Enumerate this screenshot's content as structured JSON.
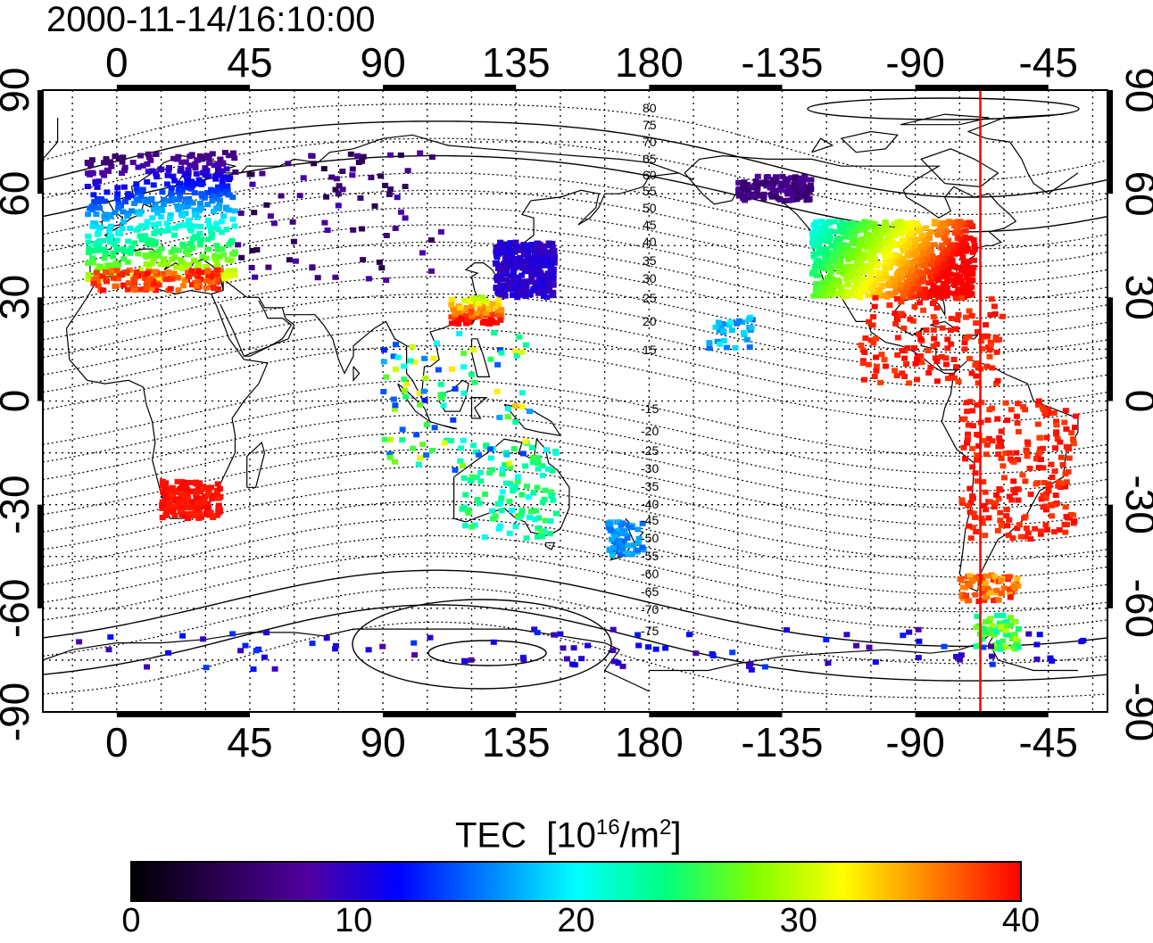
{
  "title": "2000-11-14/16:10:00",
  "map": {
    "lon_ticks_top": [
      "0",
      "45",
      "90",
      "135",
      "180",
      "-135",
      "-90",
      "-45"
    ],
    "lon_ticks_bottom": [
      "0",
      "45",
      "90",
      "135",
      "180",
      "-135",
      "-90",
      "-45"
    ],
    "lat_ticks_left": [
      "90",
      "60",
      "30",
      "0",
      "-30",
      "-60",
      "-90"
    ],
    "lat_ticks_right": [
      "90",
      "60",
      "30",
      "0",
      "-30",
      "-60",
      "-90"
    ],
    "contour_labels_north": [
      "80",
      "75",
      "70",
      "65",
      "60",
      "55",
      "50",
      "45",
      "40",
      "35",
      "30",
      "25",
      "20",
      "15"
    ],
    "contour_labels_south": [
      "-15",
      "-20",
      "-25",
      "-30",
      "-35",
      "-40",
      "-45",
      "-50",
      "-55",
      "-60",
      "-65",
      "-70",
      "-75"
    ],
    "marker_line_longitude": -68,
    "marker_line_color": "#ff0000"
  },
  "colorbar": {
    "label": "TEC",
    "unit_prefix": "[10",
    "unit_exp": "16",
    "unit_mid": "/m",
    "unit_exp2": "2",
    "unit_suffix": "]",
    "ticks": [
      "0",
      "10",
      "20",
      "30",
      "40"
    ],
    "range": [
      0,
      40
    ],
    "colors": [
      "#000000",
      "#2a0050",
      "#5000a0",
      "#0000ff",
      "#0080ff",
      "#00ffff",
      "#00ff80",
      "#80ff00",
      "#ffff00",
      "#ff8000",
      "#ff0000"
    ]
  }
}
